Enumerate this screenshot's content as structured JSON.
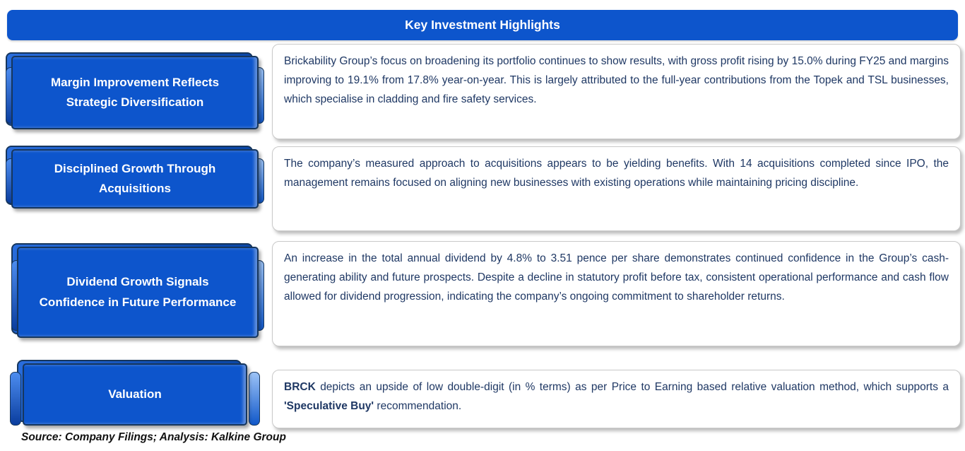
{
  "header": {
    "title": "Key Investment Highlights"
  },
  "sections": [
    {
      "label": "Margin Improvement Reflects Strategic Diversification",
      "body": "Brickability Group’s focus on broadening its portfolio continues to show results, with gross profit rising by 15.0% during FY25 and margins improving to 19.1% from 17.8% year-on-year. This is largely attributed to the full-year contributions from the Topek and TSL businesses, which specialise in cladding and fire safety services."
    },
    {
      "label": "Disciplined Growth Through Acquisitions",
      "body": "The company’s measured approach to acquisitions appears to be yielding benefits. With 14 acquisitions completed since IPO, the management remains focused on aligning new businesses with existing operations while maintaining pricing discipline."
    },
    {
      "label": "Dividend Growth Signals Confidence in Future Performance",
      "body": "An increase in the total annual dividend by 4.8% to 3.51 pence per share demonstrates continued confidence in the Group’s cash-generating ability and future prospects. Despite a decline in statutory profit before tax, consistent operational performance and cash flow allowed for dividend progression, indicating the company’s ongoing commitment to shareholder returns."
    },
    {
      "label": "Valuation",
      "segments": [
        {
          "text": "BRCK",
          "bold": true
        },
        {
          "text": " depicts an upside of low double-digit (in % terms) as per Price to Earning based relative valuation method, which supports a  ",
          "bold": false
        },
        {
          "text": "'Speculative Buy'",
          "bold": true
        },
        {
          "text": " recommendation.",
          "bold": false
        }
      ]
    }
  ],
  "footer": {
    "text": "Source: Company Filings; Analysis: Kalkine Group"
  },
  "colors": {
    "accent_blue": "#0d55cc",
    "box_outline": "#16365d",
    "body_text": "#1f3864",
    "panel_border": "#c9c9c9"
  }
}
